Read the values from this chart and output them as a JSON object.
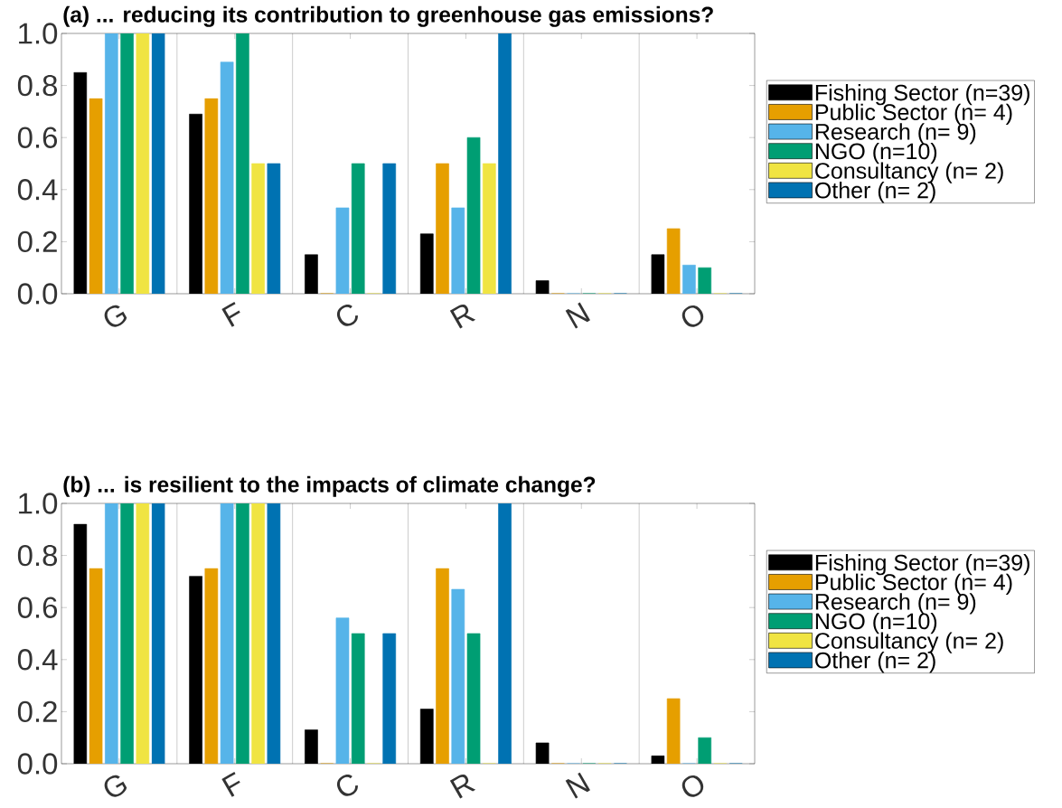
{
  "chart_data": [
    {
      "type": "bar",
      "title": "(a) ... reducing its contribution to greenhouse gas emissions?",
      "categories": [
        "G",
        "F",
        "C",
        "R",
        "N",
        "O"
      ],
      "series": [
        {
          "name": "Fishing Sector (n=39)",
          "color": "#000000",
          "values": [
            0.85,
            0.69,
            0.15,
            0.23,
            0.05,
            0.15
          ]
        },
        {
          "name": "Public Sector (n= 4)",
          "color": "#e69f00",
          "values": [
            0.75,
            0.75,
            0,
            0.5,
            0,
            0.25
          ]
        },
        {
          "name": "Research (n= 9)",
          "color": "#56b4e9",
          "values": [
            1,
            0.89,
            0.33,
            0.33,
            0,
            0.11
          ]
        },
        {
          "name": "NGO (n=10)",
          "color": "#009e73",
          "values": [
            1,
            1,
            0.5,
            0.6,
            0,
            0.1
          ]
        },
        {
          "name": "Consultancy (n= 2)",
          "color": "#f0e442",
          "values": [
            1,
            0.5,
            0,
            0.5,
            0,
            0
          ]
        },
        {
          "name": "Other (n= 2)",
          "color": "#0072b2",
          "values": [
            1,
            0.5,
            0.5,
            1,
            0,
            0
          ]
        }
      ],
      "ylim": [
        0,
        1
      ],
      "yticks": [
        {
          "value": 0,
          "label": "0.0"
        },
        {
          "value": 0.2,
          "label": "0.2"
        },
        {
          "value": 0.4,
          "label": "0.4"
        },
        {
          "value": 0.6,
          "label": "0.6"
        },
        {
          "value": 0.8,
          "label": "0.8"
        },
        {
          "value": 1,
          "label": "1.0"
        }
      ],
      "grid": "x",
      "legend": "right"
    },
    {
      "type": "bar",
      "title": "(b) ... is resilient to the impacts of climate change?",
      "categories": [
        "G",
        "F",
        "C",
        "R",
        "N",
        "O"
      ],
      "series": [
        {
          "name": "Fishing Sector (n=39)",
          "color": "#000000",
          "values": [
            0.92,
            0.72,
            0.13,
            0.21,
            0.08,
            0.03
          ]
        },
        {
          "name": "Public Sector (n= 4)",
          "color": "#e69f00",
          "values": [
            0.75,
            0.75,
            0,
            0.75,
            0,
            0.25
          ]
        },
        {
          "name": "Research (n= 9)",
          "color": "#56b4e9",
          "values": [
            1,
            1,
            0.56,
            0.67,
            0,
            0
          ]
        },
        {
          "name": "NGO (n=10)",
          "color": "#009e73",
          "values": [
            1,
            1,
            0.5,
            0.5,
            0,
            0.1
          ]
        },
        {
          "name": "Consultancy (n= 2)",
          "color": "#f0e442",
          "values": [
            1,
            1,
            0,
            0,
            0,
            0
          ]
        },
        {
          "name": "Other (n= 2)",
          "color": "#0072b2",
          "values": [
            1,
            1,
            0.5,
            1,
            0,
            0
          ]
        }
      ],
      "ylim": [
        0,
        1
      ],
      "yticks": [
        {
          "value": 0,
          "label": "0.0"
        },
        {
          "value": 0.2,
          "label": "0.2"
        },
        {
          "value": 0.4,
          "label": "0.4"
        },
        {
          "value": 0.6,
          "label": "0.6"
        },
        {
          "value": 0.8,
          "label": "0.8"
        },
        {
          "value": 1,
          "label": "1.0"
        }
      ],
      "grid": "x",
      "legend": "right"
    }
  ]
}
